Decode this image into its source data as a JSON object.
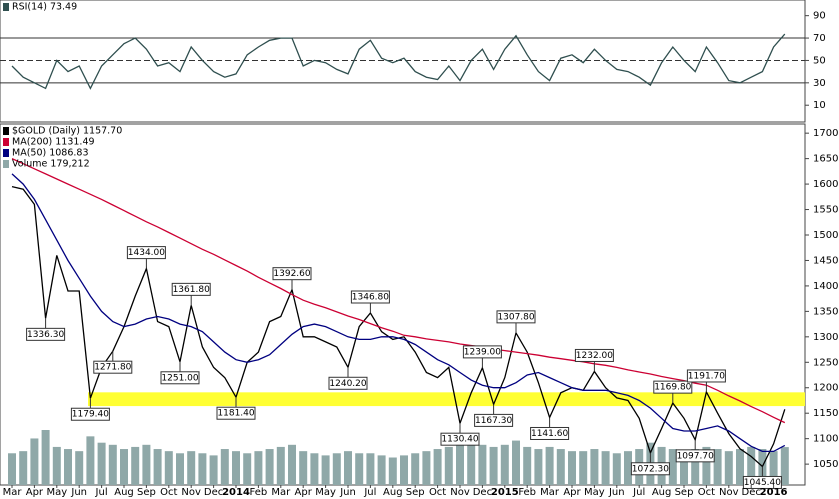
{
  "chart_data": [
    {
      "type": "line",
      "series": [
        {
          "name": "RSI(14) 73.49",
          "color": "#2f4f4f",
          "values": [
            45,
            35,
            30,
            25,
            50,
            40,
            45,
            25,
            45,
            55,
            65,
            70,
            60,
            45,
            48,
            40,
            62,
            50,
            40,
            35,
            38,
            55,
            62,
            68,
            70,
            70,
            45,
            50,
            48,
            42,
            38,
            60,
            68,
            52,
            48,
            52,
            40,
            35,
            33,
            45,
            32,
            50,
            60,
            42,
            60,
            72,
            55,
            40,
            32,
            52,
            55,
            48,
            60,
            50,
            42,
            40,
            35,
            28,
            48,
            62,
            50,
            40,
            62,
            48,
            32,
            30,
            35,
            40,
            62,
            73.49
          ]
        }
      ],
      "ylim": [
        -5,
        104
      ],
      "yticks": [
        10,
        30,
        50,
        70,
        90
      ],
      "reference_lines": [
        30,
        50,
        70
      ]
    },
    {
      "type": "line",
      "categories": [
        "Mar",
        null,
        "Apr",
        null,
        "May",
        null,
        "Jun",
        null,
        "Jul",
        null,
        "Aug",
        null,
        "Sep",
        null,
        "Oct",
        null,
        "Nov",
        null,
        "Dec",
        null,
        "2014",
        null,
        "Feb",
        null,
        "Mar",
        null,
        "Apr",
        null,
        "May",
        null,
        "Jun",
        null,
        "Jul",
        null,
        "Aug",
        null,
        "Sep",
        null,
        "Oct",
        null,
        "Nov",
        null,
        "Dec",
        null,
        "2015",
        null,
        "Feb",
        null,
        "Mar",
        null,
        "Apr",
        null,
        "May",
        null,
        "Jun",
        null,
        "Jul",
        null,
        "Aug",
        null,
        "Sep",
        null,
        "Oct",
        null,
        "Nov",
        null,
        "Dec",
        null,
        "2016",
        null
      ],
      "series": [
        {
          "name": "$GOLD (Daily) 1157.70",
          "color": "#000000",
          "values": [
            1595,
            1590,
            1560,
            1336.3,
            1460,
            1390,
            1390,
            1179.4,
            1240,
            1271.8,
            1320,
            1380,
            1434,
            1330,
            1320,
            1251,
            1361.8,
            1280,
            1240,
            1220,
            1181.4,
            1250,
            1270,
            1330,
            1340,
            1392.6,
            1300,
            1300,
            1290,
            1280,
            1240.2,
            1320,
            1346.8,
            1310,
            1295,
            1300,
            1270,
            1230,
            1220,
            1240,
            1130.4,
            1190,
            1239,
            1167.3,
            1220,
            1307.8,
            1270,
            1210,
            1141.6,
            1190,
            1200,
            1195,
            1232,
            1200,
            1180,
            1175,
            1140,
            1072.3,
            1120,
            1169.8,
            1140,
            1097.7,
            1191.7,
            1150,
            1110,
            1080,
            1065,
            1045.4,
            1090,
            1157.7
          ],
          "value_labels": [
            null,
            null,
            null,
            "1336.30",
            null,
            null,
            null,
            "1179.40",
            null,
            "1271.80",
            null,
            null,
            "1434.00",
            null,
            null,
            "1251.00",
            "1361.80",
            null,
            null,
            null,
            "1181.40",
            null,
            null,
            null,
            null,
            "1392.60",
            null,
            null,
            null,
            null,
            "1240.20",
            null,
            "1346.80",
            null,
            null,
            null,
            null,
            null,
            null,
            null,
            "1130.40",
            null,
            "1239.00",
            "1167.30",
            null,
            "1307.80",
            null,
            null,
            "1141.60",
            null,
            null,
            null,
            "1232.00",
            null,
            null,
            null,
            null,
            "1072.30",
            null,
            "1169.80",
            null,
            "1097.70",
            "1191.70",
            null,
            null,
            null,
            null,
            "1045.40",
            null,
            null
          ]
        },
        {
          "name": "MA(200) 1131.49",
          "color": "#cc0033",
          "values": [
            1650,
            1640,
            1630,
            1620,
            1610,
            1600,
            1590,
            1580,
            1570,
            1559,
            1548,
            1537,
            1526,
            1516,
            1505,
            1494,
            1483,
            1472,
            1462,
            1451,
            1440,
            1429,
            1417,
            1406,
            1395,
            1383,
            1372,
            1364,
            1357,
            1349,
            1341,
            1334,
            1326,
            1318,
            1311,
            1303,
            1300,
            1296,
            1293,
            1290,
            1286,
            1283,
            1280,
            1276,
            1273,
            1270,
            1267,
            1264,
            1260,
            1257,
            1254,
            1251,
            1247,
            1244,
            1240,
            1235,
            1231,
            1227,
            1222,
            1218,
            1214,
            1209,
            1205,
            1195,
            1184,
            1174,
            1163,
            1153,
            1142,
            1131.49
          ]
        },
        {
          "name": "MA(50) 1086.83",
          "color": "#000080",
          "values": [
            1620,
            1600,
            1570,
            1530,
            1490,
            1450,
            1415,
            1380,
            1350,
            1330,
            1320,
            1325,
            1335,
            1340,
            1335,
            1325,
            1320,
            1310,
            1290,
            1270,
            1255,
            1250,
            1255,
            1265,
            1285,
            1305,
            1320,
            1325,
            1320,
            1310,
            1300,
            1295,
            1295,
            1300,
            1300,
            1295,
            1285,
            1270,
            1255,
            1245,
            1230,
            1215,
            1205,
            1200,
            1200,
            1210,
            1225,
            1230,
            1220,
            1210,
            1200,
            1195,
            1195,
            1195,
            1190,
            1185,
            1175,
            1160,
            1140,
            1120,
            1115,
            1115,
            1120,
            1125,
            1115,
            1100,
            1085,
            1075,
            1075,
            1086.83
          ]
        },
        {
          "name": "Volume 179,212",
          "color": "#8fa8a8",
          "type": "bar",
          "values": [
            150000,
            160000,
            220000,
            260000,
            180000,
            170000,
            160000,
            230000,
            200000,
            190000,
            170000,
            180000,
            190000,
            170000,
            160000,
            150000,
            160000,
            150000,
            140000,
            170000,
            160000,
            150000,
            160000,
            170000,
            180000,
            190000,
            160000,
            150000,
            140000,
            150000,
            160000,
            150000,
            150000,
            140000,
            130000,
            140000,
            150000,
            160000,
            170000,
            180000,
            230000,
            200000,
            190000,
            180000,
            190000,
            210000,
            180000,
            170000,
            180000,
            170000,
            160000,
            160000,
            170000,
            160000,
            150000,
            160000,
            170000,
            200000,
            180000,
            170000,
            160000,
            170000,
            180000,
            170000,
            160000,
            170000,
            180000,
            170000,
            160000,
            179212
          ]
        }
      ],
      "ylim": [
        1009,
        1718
      ],
      "yticks": [
        1050,
        1100,
        1150,
        1200,
        1250,
        1300,
        1350,
        1400,
        1450,
        1500,
        1550,
        1600,
        1650,
        1700
      ],
      "support_band": {
        "from": 1164,
        "to": 1191,
        "color": "#ffff33"
      }
    }
  ]
}
